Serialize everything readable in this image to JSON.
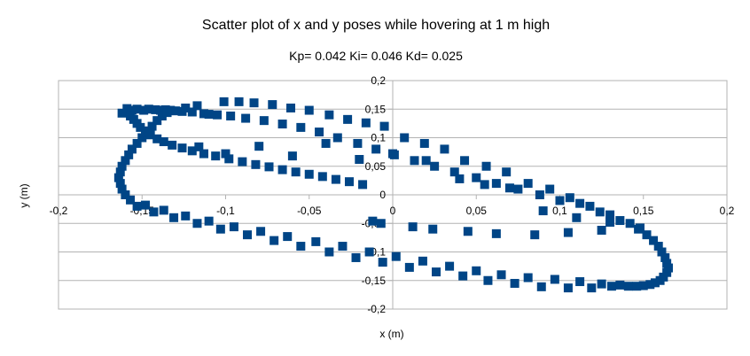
{
  "chart_data": {
    "type": "scatter",
    "title": "Scatter plot of x and y poses while hovering at 1 m high",
    "subtitle": "Kp= 0.042  Ki= 0.046  Kd= 0.025",
    "xlabel": "x (m)",
    "ylabel": "y (m)",
    "xlim": [
      -0.2,
      0.2
    ],
    "ylim": [
      -0.2,
      0.2
    ],
    "x_ticks": [
      "-0,2",
      "-0,15",
      "-0,1",
      "-0,05",
      "0",
      "0,05",
      "0,1",
      "0,15",
      "0,2"
    ],
    "y_ticks": [
      "0,2",
      "0,15",
      "0,1",
      "0,05",
      "0",
      "-0,05",
      "-0,1",
      "-0,15",
      "-0,2"
    ],
    "grid": "horizontal",
    "legend": "none",
    "marker": "square",
    "color": "#004586",
    "series": [
      {
        "points": [
          [
            -0.162,
            0.143
          ],
          [
            -0.159,
            0.151
          ],
          [
            -0.156,
            0.148
          ],
          [
            -0.153,
            0.15
          ],
          [
            -0.149,
            0.148
          ],
          [
            -0.146,
            0.15
          ],
          [
            -0.142,
            0.149
          ],
          [
            -0.139,
            0.148
          ],
          [
            -0.136,
            0.149
          ],
          [
            -0.133,
            0.148
          ],
          [
            -0.13,
            0.147
          ],
          [
            -0.126,
            0.146
          ],
          [
            -0.124,
            0.152
          ],
          [
            -0.12,
            0.145
          ],
          [
            -0.117,
            0.156
          ],
          [
            -0.113,
            0.142
          ],
          [
            -0.11,
            0.141
          ],
          [
            -0.105,
            0.14
          ],
          [
            -0.101,
            0.163
          ],
          [
            -0.097,
            0.138
          ],
          [
            -0.092,
            0.163
          ],
          [
            -0.088,
            0.134
          ],
          [
            -0.083,
            0.161
          ],
          [
            -0.077,
            0.13
          ],
          [
            -0.072,
            0.158
          ],
          [
            -0.066,
            0.124
          ],
          [
            -0.061,
            0.152
          ],
          [
            -0.055,
            0.118
          ],
          [
            -0.05,
            0.148
          ],
          [
            -0.044,
            0.11
          ],
          [
            -0.038,
            0.14
          ],
          [
            -0.033,
            0.1
          ],
          [
            -0.027,
            0.132
          ],
          [
            -0.021,
            0.09
          ],
          [
            -0.016,
            0.126
          ],
          [
            -0.01,
            0.08
          ],
          [
            -0.005,
            0.12
          ],
          [
            0.001,
            0.07
          ],
          [
            0.007,
            0.1
          ],
          [
            0.013,
            0.06
          ],
          [
            0.019,
            0.09
          ],
          [
            0.025,
            0.05
          ],
          [
            0.031,
            0.08
          ],
          [
            0.037,
            0.04
          ],
          [
            0.043,
            0.06
          ],
          [
            0.05,
            0.03
          ],
          [
            0.056,
            0.05
          ],
          [
            0.062,
            0.02
          ],
          [
            0.068,
            0.04
          ],
          [
            0.075,
            0.01
          ],
          [
            0.081,
            0.02
          ],
          [
            0.088,
            0.0
          ],
          [
            0.094,
            0.01
          ],
          [
            0.1,
            -0.01
          ],
          [
            0.106,
            -0.005
          ],
          [
            0.112,
            -0.015
          ],
          [
            0.118,
            -0.02
          ],
          [
            0.124,
            -0.03
          ],
          [
            0.13,
            -0.035
          ],
          [
            0.136,
            -0.045
          ],
          [
            0.142,
            -0.05
          ],
          [
            0.147,
            -0.06
          ],
          [
            0.152,
            -0.07
          ],
          [
            0.156,
            -0.08
          ],
          [
            0.159,
            -0.09
          ],
          [
            0.161,
            -0.1
          ],
          [
            0.163,
            -0.11
          ],
          [
            0.164,
            -0.12
          ],
          [
            0.165,
            -0.128
          ],
          [
            0.164,
            -0.136
          ],
          [
            0.162,
            -0.144
          ],
          [
            0.16,
            -0.15
          ],
          [
            0.157,
            -0.154
          ],
          [
            0.154,
            -0.157
          ],
          [
            0.15,
            -0.159
          ],
          [
            0.146,
            -0.16
          ],
          [
            0.141,
            -0.16
          ],
          [
            0.136,
            -0.158
          ],
          [
            0.131,
            -0.16
          ],
          [
            0.125,
            -0.156
          ],
          [
            0.119,
            -0.163
          ],
          [
            0.112,
            -0.152
          ],
          [
            0.105,
            -0.163
          ],
          [
            0.097,
            -0.148
          ],
          [
            0.089,
            -0.161
          ],
          [
            0.081,
            -0.145
          ],
          [
            0.073,
            -0.155
          ],
          [
            0.065,
            -0.14
          ],
          [
            0.057,
            -0.15
          ],
          [
            0.05,
            -0.133
          ],
          [
            0.042,
            -0.142
          ],
          [
            0.034,
            -0.125
          ],
          [
            0.026,
            -0.135
          ],
          [
            0.018,
            -0.116
          ],
          [
            0.01,
            -0.127
          ],
          [
            0.002,
            -0.108
          ],
          [
            -0.006,
            -0.118
          ],
          [
            -0.014,
            -0.1
          ],
          [
            -0.022,
            -0.11
          ],
          [
            -0.03,
            -0.09
          ],
          [
            -0.038,
            -0.1
          ],
          [
            -0.046,
            -0.082
          ],
          [
            -0.055,
            -0.09
          ],
          [
            -0.063,
            -0.073
          ],
          [
            -0.071,
            -0.08
          ],
          [
            -0.079,
            -0.064
          ],
          [
            -0.087,
            -0.07
          ],
          [
            -0.095,
            -0.056
          ],
          [
            -0.103,
            -0.06
          ],
          [
            -0.11,
            -0.046
          ],
          [
            -0.117,
            -0.05
          ],
          [
            -0.124,
            -0.037
          ],
          [
            -0.131,
            -0.04
          ],
          [
            -0.137,
            -0.027
          ],
          [
            -0.143,
            -0.03
          ],
          [
            -0.148,
            -0.018
          ],
          [
            -0.153,
            -0.02
          ],
          [
            -0.157,
            -0.009
          ],
          [
            -0.16,
            0.0
          ],
          [
            -0.162,
            0.01
          ],
          [
            -0.163,
            0.02
          ],
          [
            -0.164,
            0.03
          ],
          [
            -0.163,
            0.04
          ],
          [
            -0.162,
            0.05
          ],
          [
            -0.16,
            0.06
          ],
          [
            -0.158,
            0.07
          ],
          [
            -0.156,
            0.08
          ],
          [
            -0.153,
            0.09
          ],
          [
            -0.15,
            0.1
          ],
          [
            -0.147,
            0.11
          ],
          [
            -0.144,
            0.12
          ],
          [
            -0.141,
            0.13
          ],
          [
            -0.138,
            0.138
          ],
          [
            -0.135,
            0.144
          ],
          [
            -0.157,
            0.138
          ],
          [
            -0.155,
            0.132
          ],
          [
            -0.153,
            0.125
          ],
          [
            -0.151,
            0.118
          ],
          [
            -0.148,
            0.112
          ],
          [
            -0.145,
            0.105
          ],
          [
            -0.141,
            0.098
          ],
          [
            -0.137,
            0.093
          ],
          [
            -0.132,
            0.087
          ],
          [
            -0.126,
            0.082
          ],
          [
            -0.12,
            0.077
          ],
          [
            -0.113,
            0.072
          ],
          [
            -0.106,
            0.068
          ],
          [
            -0.098,
            0.063
          ],
          [
            -0.09,
            0.058
          ],
          [
            -0.082,
            0.053
          ],
          [
            -0.074,
            0.049
          ],
          [
            -0.066,
            0.044
          ],
          [
            -0.058,
            0.04
          ],
          [
            -0.05,
            0.036
          ],
          [
            -0.042,
            0.032
          ],
          [
            -0.034,
            0.027
          ],
          [
            -0.026,
            0.023
          ],
          [
            -0.018,
            0.018
          ],
          [
            -0.012,
            -0.046
          ],
          [
            -0.007,
            -0.05
          ],
          [
            0.012,
            -0.056
          ],
          [
            0.024,
            -0.06
          ],
          [
            0.045,
            -0.064
          ],
          [
            0.062,
            -0.068
          ],
          [
            0.085,
            -0.07
          ],
          [
            0.105,
            -0.066
          ],
          [
            0.125,
            -0.062
          ],
          [
            0.148,
            -0.058
          ],
          [
            -0.116,
            0.084
          ],
          [
            -0.1,
            0.072
          ],
          [
            -0.08,
            0.085
          ],
          [
            -0.06,
            0.068
          ],
          [
            -0.04,
            0.09
          ],
          [
            -0.02,
            0.062
          ],
          [
            0.0,
            0.072
          ],
          [
            0.02,
            0.06
          ],
          [
            0.04,
            0.028
          ],
          [
            0.055,
            0.018
          ],
          [
            0.07,
            0.012
          ],
          [
            0.09,
            -0.028
          ],
          [
            0.11,
            -0.04
          ],
          [
            0.13,
            -0.048
          ]
        ]
      }
    ]
  }
}
